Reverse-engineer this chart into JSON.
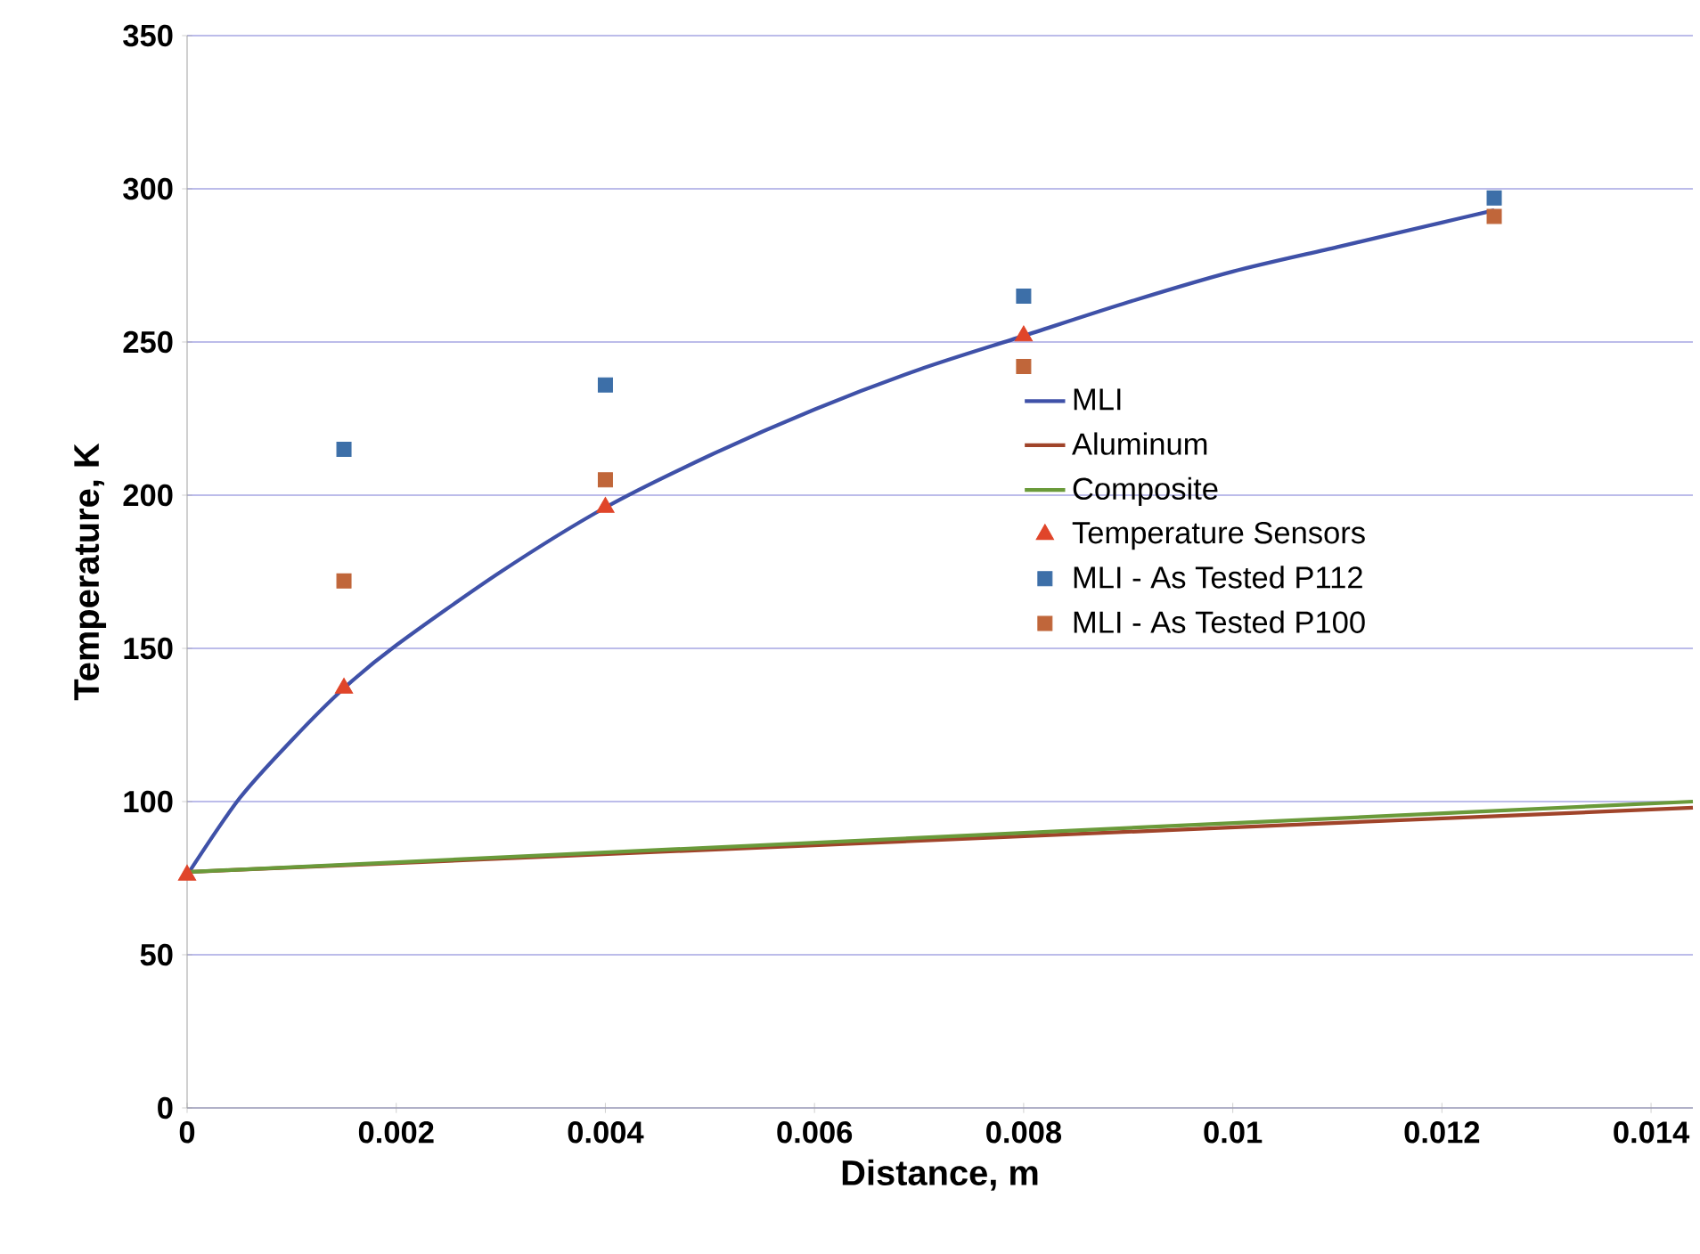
{
  "chart_data": {
    "type": "line",
    "xlabel": "Distance, m",
    "ylabel": "Temperature, K",
    "xlim": [
      0,
      0.0144
    ],
    "ylim": [
      0,
      350
    ],
    "xticks": [
      0,
      0.002,
      0.004,
      0.006,
      0.008,
      0.01,
      0.012,
      0.014
    ],
    "yticks": [
      0,
      50,
      100,
      150,
      200,
      250,
      300,
      350
    ],
    "grid": "y",
    "legend": "right",
    "series": [
      {
        "name": "MLI",
        "color": "#3f51a8",
        "x": [
          0,
          0.0005,
          0.001,
          0.0015,
          0.002,
          0.003,
          0.004,
          0.005,
          0.006,
          0.007,
          0.008,
          0.009,
          0.01,
          0.011,
          0.012,
          0.0125
        ],
        "values": [
          76,
          101,
          120,
          137,
          151,
          175,
          196,
          213,
          228,
          241,
          252,
          263,
          273,
          281,
          289,
          293
        ]
      },
      {
        "name": "Aluminum",
        "color": "#a0442a",
        "x": [
          0,
          0.0144
        ],
        "values": [
          77,
          98
        ]
      },
      {
        "name": "Composite",
        "color": "#6a9a3a",
        "x": [
          0,
          0.0144
        ],
        "values": [
          77,
          100
        ]
      },
      {
        "name": "Temperature Sensors",
        "type": "scatter",
        "marker": "triangle",
        "color": "#e0452a",
        "x": [
          0,
          0.0015,
          0.004,
          0.008
        ],
        "values": [
          76,
          137,
          196,
          252
        ]
      },
      {
        "name": "MLI - As Tested P112",
        "type": "scatter",
        "marker": "square",
        "color": "#3d6fa8",
        "x": [
          0.0015,
          0.004,
          0.008,
          0.0125
        ],
        "values": [
          215,
          236,
          265,
          297
        ]
      },
      {
        "name": "MLI - As Tested P100",
        "type": "scatter",
        "marker": "square",
        "color": "#c0663a",
        "x": [
          0.0015,
          0.004,
          0.008,
          0.0125
        ],
        "values": [
          172,
          205,
          242,
          291
        ]
      }
    ]
  }
}
